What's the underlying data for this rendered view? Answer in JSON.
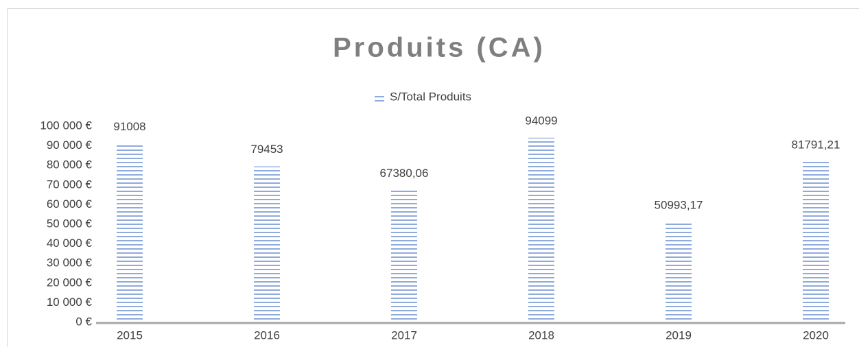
{
  "chart_data": {
    "type": "bar",
    "title": "Produits (CA)",
    "categories": [
      "2015",
      "2016",
      "2017",
      "2018",
      "2019",
      "2020"
    ],
    "series": [
      {
        "name": "S/Total Produits",
        "color": "#4472c4",
        "values": [
          91008,
          79453,
          67380.06,
          94099,
          50993.17,
          81791.21
        ],
        "value_labels": [
          "91008",
          "79453",
          "67380,06",
          "94099",
          "50993,17",
          "81791,21"
        ]
      }
    ],
    "ylim": [
      0,
      100000
    ],
    "yticks": [
      {
        "value": 0,
        "label": "0 €"
      },
      {
        "value": 10000,
        "label": "10 000 €"
      },
      {
        "value": 20000,
        "label": "20 000 €"
      },
      {
        "value": 30000,
        "label": "30 000 €"
      },
      {
        "value": 40000,
        "label": "40 000 €"
      },
      {
        "value": 50000,
        "label": "50 000 €"
      },
      {
        "value": 60000,
        "label": "60 000 €"
      },
      {
        "value": 70000,
        "label": "70 000 €"
      },
      {
        "value": 80000,
        "label": "80 000 €"
      },
      {
        "value": 90000,
        "label": "90 000 €"
      },
      {
        "value": 100000,
        "label": "100 000 €"
      }
    ],
    "grid": false,
    "legend": "top"
  }
}
